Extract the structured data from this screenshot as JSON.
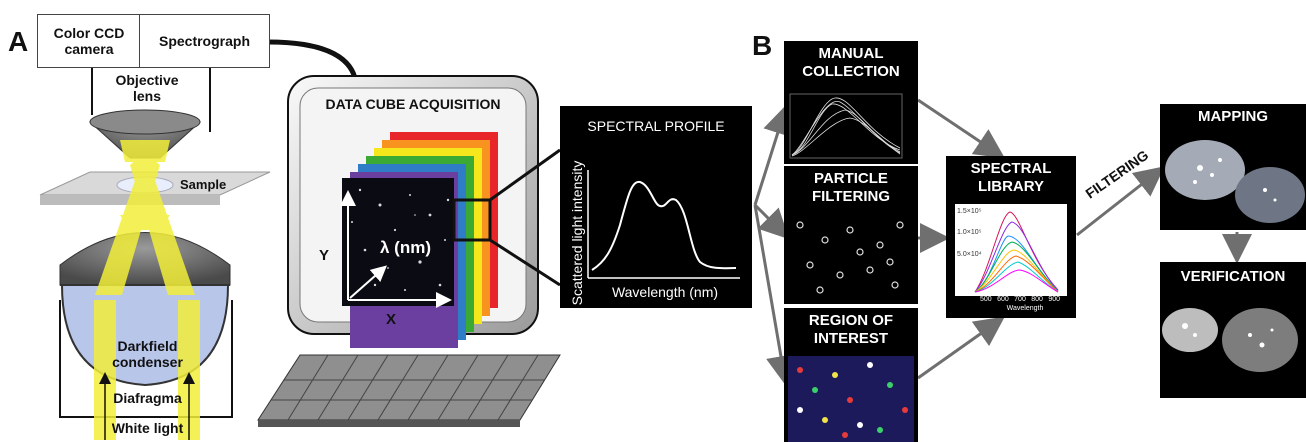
{
  "panel_a": {
    "letter": "A",
    "camera": "Color CCD\ncamera",
    "spectrograph": "Spectrograph",
    "objective": "Objective\nlens",
    "sample": "Sample",
    "condenser": "Darkfield\ncondenser",
    "diafragma": "Diafragma",
    "white_light": "White light",
    "cube_title": "DATA CUBE ACQUISITION",
    "axis_y": "Y",
    "axis_x": "X",
    "axis_lambda": "λ (nm)",
    "spectral_profile": {
      "title": "SPECTRAL PROFILE",
      "ylabel": "Scattered light intensity",
      "xlabel": "Wavelength (nm)"
    }
  },
  "panel_b": {
    "letter": "B",
    "manual": "MANUAL\nCOLLECTION",
    "particle": "PARTICLE\nFILTERING",
    "roi": "REGION OF\nINTEREST",
    "library": "SPECTRAL\nLIBRARY",
    "filtering": "FILTERING",
    "mapping": "MAPPING",
    "verification": "VERIFICATION",
    "library_plot": {
      "y_ticks": [
        "1.5×10⁵",
        "1.0×10⁵",
        "5.0×10⁴"
      ],
      "x_ticks": [
        "500",
        "600",
        "700",
        "800",
        "900"
      ],
      "xlabel": "Wavelength"
    }
  },
  "colors": {
    "yellow_light": "#f2ef3a",
    "cube_stripes": [
      "#e8262a",
      "#f7931e",
      "#f5e71c",
      "#3aaa35",
      "#2e7dc6",
      "#6a3fa0"
    ]
  }
}
